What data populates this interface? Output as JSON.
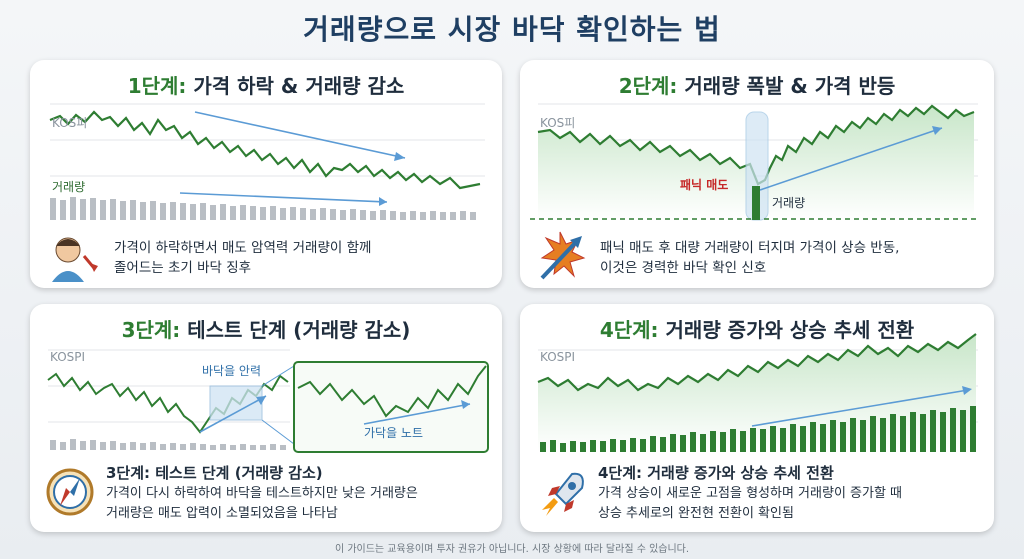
{
  "title": "거래량으로 시장 바닥 확인하는 법",
  "panels": [
    {
      "step": "1단계:",
      "heading": "가격 하락 & 거래량 감소",
      "chart_label": "KOS피",
      "volume_label": "거래량",
      "description_line1": "가격이 하락하면서 매도 암역력 거래량이 함께",
      "description_line2": "졸어드는 초기 바닥 징후"
    },
    {
      "step": "2단계:",
      "heading": "거래량 폭발 & 가격 반등",
      "chart_label": "KOS피",
      "panic_label": "패닉 매도",
      "volume_label": "거래량",
      "description_line1": "패닉 매도 후 대량 거래량이 터지며 가격이 상승 반동,",
      "description_line2": "이것은 경력한 바닥 확인 신호"
    },
    {
      "step": "3단계:",
      "heading": "테스트 단계 (거래량 감소)",
      "chart_label": "KOSPI",
      "zoom_label": "바닥을 안력",
      "note_label": "가닥을 노트",
      "desc_title": "3단계: 테스트 단계 (거래량 감소)",
      "description_line1": "가격이 다시 하락하여 바닥을 테스트하지만 낮은 거래량은",
      "description_line2": "거래량은 매도 압력이 소멸되었음을 나타남"
    },
    {
      "step": "4단계:",
      "heading": "거래량 증가와 상승 추세 전환",
      "chart_label": "KOSPI",
      "desc_title": "4단계: 거래량 증가와 상승 추세 전환",
      "description_line1": "가격 상승이 새로운 고점을 형성하며 거래량이 증가할 때",
      "description_line2": "상승 추세로의 완전현 전환이 확인됨"
    }
  ],
  "footer": "이 가이드는 교육용이며 투자 권유가 아닙니다. 시장 상황에 따라 달라질 수 있습니다.",
  "colors": {
    "title": "#1f3f63",
    "step": "#2e7d32",
    "price_line": "#2e7d32",
    "trend_arrow": "#5b9bd5",
    "volume_gray": "#b9bec4",
    "volume_green": "#2e7d32",
    "panic_text": "#c62828"
  },
  "icons": {
    "panel1": "stressed-person-icon",
    "panel2": "explosion-arrow-icon",
    "panel3": "compass-icon",
    "panel4": "rocket-icon"
  }
}
